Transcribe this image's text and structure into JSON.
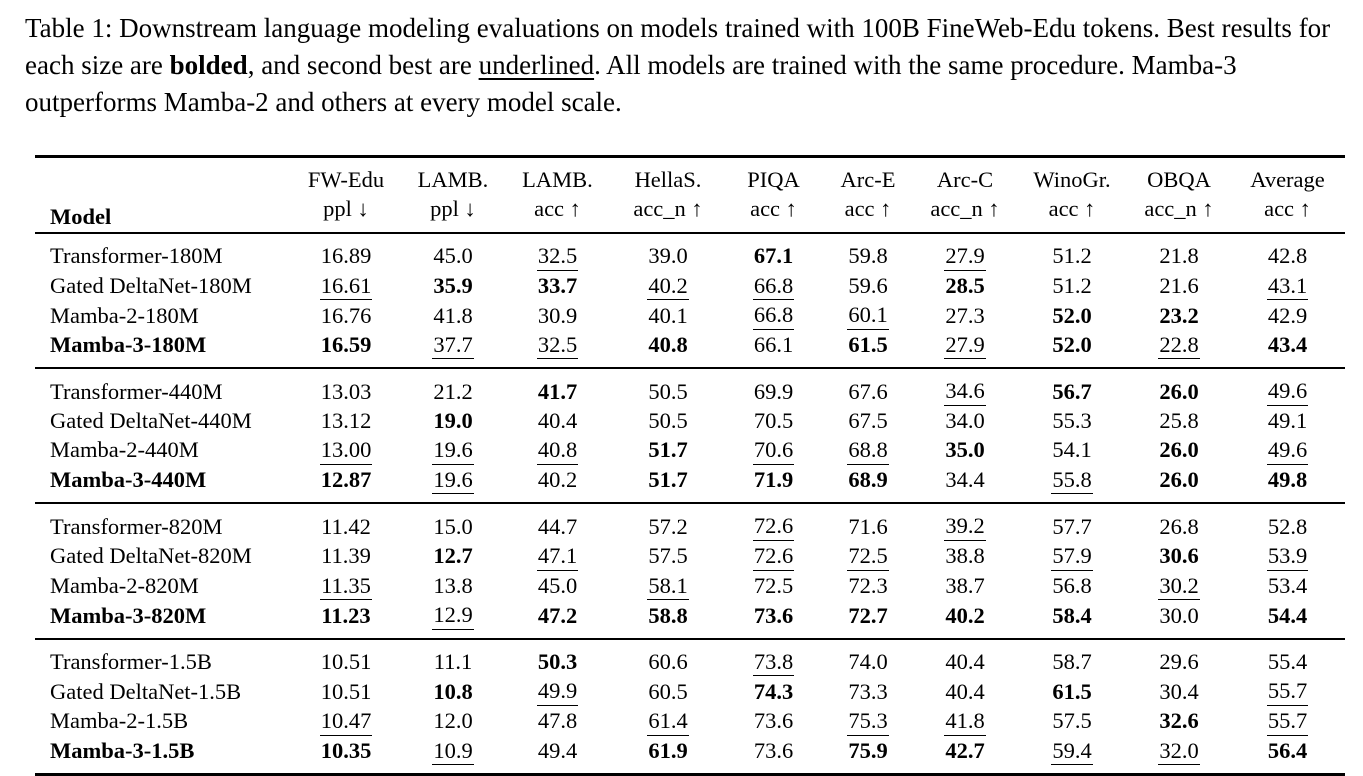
{
  "caption": {
    "prefix": "Table 1: Downstream language modeling evaluations on models trained with 100B FineWeb-Edu tokens. Best results for each size are ",
    "bold_word": "bolded",
    "middle": ", and second best are ",
    "underline_word": "underlined",
    "suffix": ". All models are trained with the same procedure. Mamba-3 outperforms Mamba-2 and others at every model scale."
  },
  "table": {
    "style_legend": {
      "b": "best (bold)",
      "u": "second best (underlined)",
      "": "plain"
    },
    "columns": [
      {
        "name": "Model",
        "sub": ""
      },
      {
        "name": "FW-Edu",
        "sub": "ppl ↓"
      },
      {
        "name": "LAMB.",
        "sub": "ppl ↓"
      },
      {
        "name": "LAMB.",
        "sub": "acc ↑"
      },
      {
        "name": "HellaS.",
        "sub": "acc_n ↑"
      },
      {
        "name": "PIQA",
        "sub": "acc ↑"
      },
      {
        "name": "Arc-E",
        "sub": "acc ↑"
      },
      {
        "name": "Arc-C",
        "sub": "acc_n ↑"
      },
      {
        "name": "WinoGr.",
        "sub": "acc ↑"
      },
      {
        "name": "OBQA",
        "sub": "acc_n ↑"
      },
      {
        "name": "Average",
        "sub": "acc ↑"
      }
    ],
    "groups": [
      {
        "size": "180M",
        "rows": [
          {
            "model": "Transformer-180M",
            "bold": false,
            "values": [
              "16.89",
              "45.0",
              "32.5",
              "39.0",
              "67.1",
              "59.8",
              "27.9",
              "51.2",
              "21.8",
              "42.8"
            ],
            "styles": [
              "",
              "",
              "u",
              "",
              "b",
              "",
              "u",
              "",
              "",
              ""
            ]
          },
          {
            "model": "Gated DeltaNet-180M",
            "bold": false,
            "values": [
              "16.61",
              "35.9",
              "33.7",
              "40.2",
              "66.8",
              "59.6",
              "28.5",
              "51.2",
              "21.6",
              "43.1"
            ],
            "styles": [
              "u",
              "b",
              "b",
              "u",
              "u",
              "",
              "b",
              "",
              "",
              "u"
            ]
          },
          {
            "model": "Mamba-2-180M",
            "bold": false,
            "values": [
              "16.76",
              "41.8",
              "30.9",
              "40.1",
              "66.8",
              "60.1",
              "27.3",
              "52.0",
              "23.2",
              "42.9"
            ],
            "styles": [
              "",
              "",
              "",
              "",
              "u",
              "u",
              "",
              "b",
              "b",
              ""
            ]
          },
          {
            "model": "Mamba-3-180M",
            "bold": true,
            "values": [
              "16.59",
              "37.7",
              "32.5",
              "40.8",
              "66.1",
              "61.5",
              "27.9",
              "52.0",
              "22.8",
              "43.4"
            ],
            "styles": [
              "b",
              "u",
              "u",
              "b",
              "",
              "b",
              "u",
              "b",
              "u",
              "b"
            ]
          }
        ]
      },
      {
        "size": "440M",
        "rows": [
          {
            "model": "Transformer-440M",
            "bold": false,
            "values": [
              "13.03",
              "21.2",
              "41.7",
              "50.5",
              "69.9",
              "67.6",
              "34.6",
              "56.7",
              "26.0",
              "49.6"
            ],
            "styles": [
              "",
              "",
              "b",
              "",
              "",
              "",
              "u",
              "b",
              "b",
              "u"
            ]
          },
          {
            "model": "Gated DeltaNet-440M",
            "bold": false,
            "values": [
              "13.12",
              "19.0",
              "40.4",
              "50.5",
              "70.5",
              "67.5",
              "34.0",
              "55.3",
              "25.8",
              "49.1"
            ],
            "styles": [
              "",
              "b",
              "",
              "",
              "",
              "",
              "",
              "",
              "",
              ""
            ]
          },
          {
            "model": "Mamba-2-440M",
            "bold": false,
            "values": [
              "13.00",
              "19.6",
              "40.8",
              "51.7",
              "70.6",
              "68.8",
              "35.0",
              "54.1",
              "26.0",
              "49.6"
            ],
            "styles": [
              "u",
              "u",
              "u",
              "b",
              "u",
              "u",
              "b",
              "",
              "b",
              "u"
            ]
          },
          {
            "model": "Mamba-3-440M",
            "bold": true,
            "values": [
              "12.87",
              "19.6",
              "40.2",
              "51.7",
              "71.9",
              "68.9",
              "34.4",
              "55.8",
              "26.0",
              "49.8"
            ],
            "styles": [
              "b",
              "u",
              "",
              "b",
              "b",
              "b",
              "",
              "u",
              "b",
              "b"
            ]
          }
        ]
      },
      {
        "size": "820M",
        "rows": [
          {
            "model": "Transformer-820M",
            "bold": false,
            "values": [
              "11.42",
              "15.0",
              "44.7",
              "57.2",
              "72.6",
              "71.6",
              "39.2",
              "57.7",
              "26.8",
              "52.8"
            ],
            "styles": [
              "",
              "",
              "",
              "",
              "u",
              "",
              "u",
              "",
              "",
              ""
            ]
          },
          {
            "model": "Gated DeltaNet-820M",
            "bold": false,
            "values": [
              "11.39",
              "12.7",
              "47.1",
              "57.5",
              "72.6",
              "72.5",
              "38.8",
              "57.9",
              "30.6",
              "53.9"
            ],
            "styles": [
              "",
              "b",
              "u",
              "",
              "u",
              "u",
              "",
              "u",
              "b",
              "u"
            ]
          },
          {
            "model": "Mamba-2-820M",
            "bold": false,
            "values": [
              "11.35",
              "13.8",
              "45.0",
              "58.1",
              "72.5",
              "72.3",
              "38.7",
              "56.8",
              "30.2",
              "53.4"
            ],
            "styles": [
              "u",
              "",
              "",
              "u",
              "",
              "",
              "",
              "",
              "u",
              ""
            ]
          },
          {
            "model": "Mamba-3-820M",
            "bold": true,
            "values": [
              "11.23",
              "12.9",
              "47.2",
              "58.8",
              "73.6",
              "72.7",
              "40.2",
              "58.4",
              "30.0",
              "54.4"
            ],
            "styles": [
              "b",
              "u",
              "b",
              "b",
              "b",
              "b",
              "b",
              "b",
              "",
              "b"
            ]
          }
        ]
      },
      {
        "size": "1.5B",
        "rows": [
          {
            "model": "Transformer-1.5B",
            "bold": false,
            "values": [
              "10.51",
              "11.1",
              "50.3",
              "60.6",
              "73.8",
              "74.0",
              "40.4",
              "58.7",
              "29.6",
              "55.4"
            ],
            "styles": [
              "",
              "",
              "b",
              "",
              "u",
              "",
              "",
              "",
              "",
              ""
            ]
          },
          {
            "model": "Gated DeltaNet-1.5B",
            "bold": false,
            "values": [
              "10.51",
              "10.8",
              "49.9",
              "60.5",
              "74.3",
              "73.3",
              "40.4",
              "61.5",
              "30.4",
              "55.7"
            ],
            "styles": [
              "",
              "b",
              "u",
              "",
              "b",
              "",
              "",
              "b",
              "",
              "u"
            ]
          },
          {
            "model": "Mamba-2-1.5B",
            "bold": false,
            "values": [
              "10.47",
              "12.0",
              "47.8",
              "61.4",
              "73.6",
              "75.3",
              "41.8",
              "57.5",
              "32.6",
              "55.7"
            ],
            "styles": [
              "u",
              "",
              "",
              "u",
              "",
              "u",
              "u",
              "",
              "b",
              "u"
            ]
          },
          {
            "model": "Mamba-3-1.5B",
            "bold": true,
            "values": [
              "10.35",
              "10.9",
              "49.4",
              "61.9",
              "73.6",
              "75.9",
              "42.7",
              "59.4",
              "32.0",
              "56.4"
            ],
            "styles": [
              "b",
              "u",
              "",
              "b",
              "",
              "b",
              "b",
              "u",
              "u",
              "b"
            ]
          }
        ]
      }
    ]
  }
}
